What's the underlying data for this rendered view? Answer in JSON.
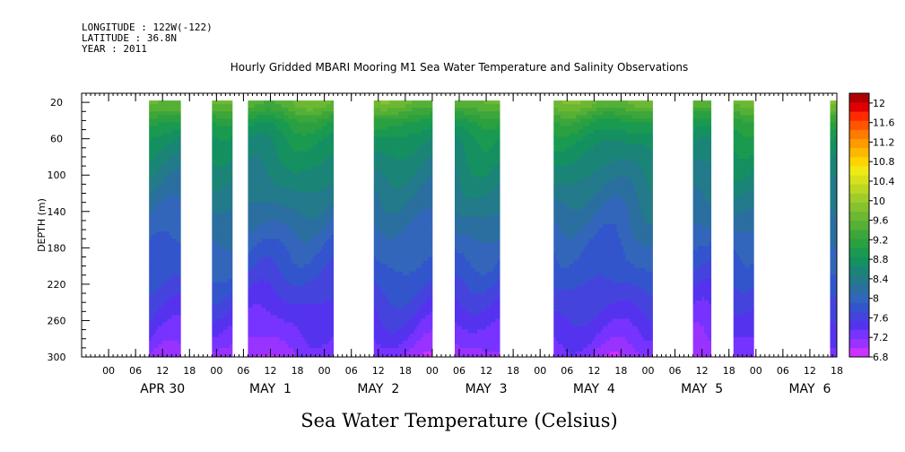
{
  "header": {
    "longitude": "LONGITUDE : 122W(-122)",
    "latitude": "LATITUDE : 36.8N",
    "year": "YEAR : 2011",
    "title": "Hourly Gridded MBARI Mooring M1 Sea Water Temperature and Salinity Observations"
  },
  "chart_data": {
    "type": "heatmap",
    "title": "Hourly Gridded MBARI Mooring M1 Sea Water Temperature and Salinity Observations",
    "xlabel": "Sea Water Temperature (Celsius)",
    "ylabel": "DEPTH (m)",
    "x_range_hours": [
      -6,
      162
    ],
    "x_origin_label": "APR 30 00:00",
    "x_ticks": [
      "00",
      "06",
      "12",
      "18",
      "00",
      "06",
      "12",
      "18",
      "00",
      "06",
      "12",
      "18",
      "00",
      "06",
      "12",
      "18",
      "00",
      "06",
      "12",
      "18",
      "00",
      "06",
      "12",
      "18",
      "00",
      "06",
      "12",
      "18"
    ],
    "x_tick_hours": [
      0,
      6,
      12,
      18,
      24,
      30,
      36,
      42,
      48,
      54,
      60,
      66,
      72,
      78,
      84,
      90,
      96,
      102,
      108,
      114,
      120,
      126,
      132,
      138,
      144,
      150,
      156,
      162
    ],
    "day_labels": [
      {
        "label": "APR 30",
        "hour": 12
      },
      {
        "label": "MAY  1",
        "hour": 36
      },
      {
        "label": "MAY  2",
        "hour": 60
      },
      {
        "label": "MAY  3",
        "hour": 84
      },
      {
        "label": "MAY  4",
        "hour": 108
      },
      {
        "label": "MAY  5",
        "hour": 132
      },
      {
        "label": "MAY  6",
        "hour": 156
      }
    ],
    "y_range_m": [
      10,
      300
    ],
    "y_inverted": true,
    "y_ticks": [
      20,
      60,
      100,
      140,
      180,
      220,
      260,
      300
    ],
    "data_blocks_hours": [
      [
        9,
        16
      ],
      [
        23,
        27.5
      ],
      [
        31,
        50
      ],
      [
        59,
        72
      ],
      [
        77,
        87
      ],
      [
        99,
        121
      ],
      [
        130,
        134
      ],
      [
        139,
        143.5
      ],
      [
        160.5,
        162
      ]
    ],
    "temperature_profile": {
      "depths_m": [
        20,
        40,
        60,
        80,
        100,
        120,
        140,
        160,
        180,
        200,
        220,
        240,
        260,
        280,
        300
      ],
      "temps_c": [
        9.8,
        9.2,
        8.9,
        8.75,
        8.6,
        8.45,
        8.3,
        8.15,
        8.0,
        7.9,
        7.75,
        7.6,
        7.45,
        7.3,
        7.1
      ]
    },
    "colorbar": {
      "labels": [
        "12",
        "11.6",
        "11.2",
        "10.8",
        "10.4",
        "10",
        "9.6",
        "9.2",
        "8.8",
        "8.4",
        "8",
        "7.6",
        "7.2",
        "6.8"
      ],
      "min": 6.8,
      "max": 12.2,
      "step": 0.2,
      "colors": [
        "#cc33ff",
        "#9933ff",
        "#7733ff",
        "#5533ee",
        "#4444dd",
        "#3355cc",
        "#3366bb",
        "#2a6fa0",
        "#227a8a",
        "#1a8577",
        "#159060",
        "#1a9a50",
        "#2aa040",
        "#3ca63a",
        "#55b035",
        "#6cb832",
        "#86c22e",
        "#a0cc2a",
        "#bcd624",
        "#d8e01c",
        "#f0ea14",
        "#ffd400",
        "#ffb800",
        "#ff9a00",
        "#ff7a00",
        "#ff5500",
        "#ff2a00",
        "#e00000",
        "#b00000"
      ]
    }
  }
}
